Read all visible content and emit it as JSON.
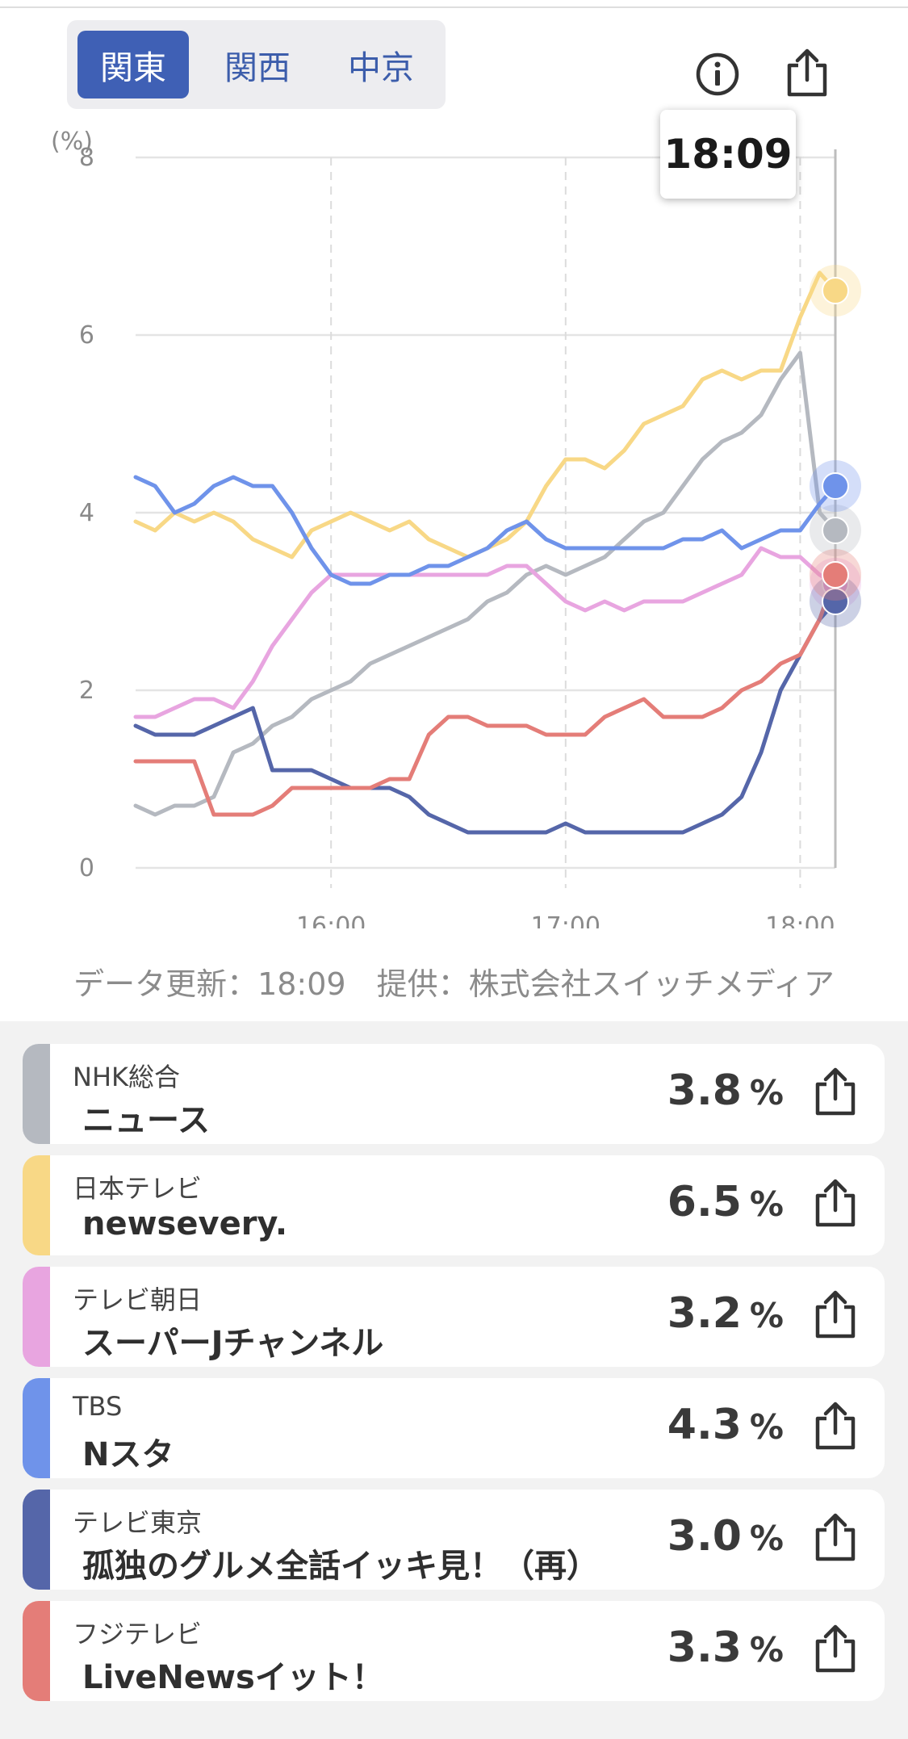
{
  "regions": {
    "tabs": [
      "関東",
      "関西",
      "中京"
    ],
    "active": 0
  },
  "tooltip_time": "18:09",
  "credit": "データ更新：18:09　提供：株式会社スイッチメディア",
  "icons": {
    "info": "info-icon",
    "share": "share-icon"
  },
  "channels": [
    {
      "channel": "NHK総合",
      "program": "ニュース",
      "rating": "3.8",
      "unit": "%",
      "color": "#b5b9c0"
    },
    {
      "channel": "日本テレビ",
      "program": "newsevery.",
      "rating": "6.5",
      "unit": "%",
      "color": "#f8d886"
    },
    {
      "channel": "テレビ朝日",
      "program": "スーパーJチャンネル",
      "rating": "3.2",
      "unit": "%",
      "color": "#e8a5e0"
    },
    {
      "channel": "TBS",
      "program": "Nスタ",
      "rating": "4.3",
      "unit": "%",
      "color": "#6f93ea"
    },
    {
      "channel": "テレビ東京",
      "program": "孤独のグルメ全話イッキ見！（再）",
      "rating": "3.0",
      "unit": "%",
      "color": "#5566a9"
    },
    {
      "channel": "フジテレビ",
      "program": "LiveNewsイット！",
      "rating": "3.3",
      "unit": "%",
      "color": "#e47d78"
    }
  ],
  "chart_data": {
    "type": "line",
    "ylabel": "(%)",
    "ylim": [
      0,
      8
    ],
    "yticks": [
      0,
      2,
      4,
      6,
      8
    ],
    "xlim": [
      "15:10",
      "18:09"
    ],
    "xticks": [
      "16:00",
      "17:00",
      "18:00"
    ],
    "cursor": "18:09",
    "grid": true,
    "x": [
      "15:10",
      "15:15",
      "15:20",
      "15:25",
      "15:30",
      "15:35",
      "15:40",
      "15:45",
      "15:50",
      "15:55",
      "16:00",
      "16:05",
      "16:10",
      "16:15",
      "16:20",
      "16:25",
      "16:30",
      "16:35",
      "16:40",
      "16:45",
      "16:50",
      "16:55",
      "17:00",
      "17:05",
      "17:10",
      "17:15",
      "17:20",
      "17:25",
      "17:30",
      "17:35",
      "17:40",
      "17:45",
      "17:50",
      "17:55",
      "18:00",
      "18:05",
      "18:09"
    ],
    "series": [
      {
        "name": "NHK総合",
        "color": "#b5b9c0",
        "values": [
          0.7,
          0.6,
          0.7,
          0.7,
          0.8,
          1.3,
          1.4,
          1.6,
          1.7,
          1.9,
          2.0,
          2.1,
          2.3,
          2.4,
          2.5,
          2.6,
          2.7,
          2.8,
          3.0,
          3.1,
          3.3,
          3.4,
          3.3,
          3.4,
          3.5,
          3.7,
          3.9,
          4.0,
          4.3,
          4.6,
          4.8,
          4.9,
          5.1,
          5.5,
          5.8,
          4.0,
          3.8
        ]
      },
      {
        "name": "日本テレビ",
        "color": "#f8d886",
        "values": [
          3.9,
          3.8,
          4.0,
          3.9,
          4.0,
          3.9,
          3.7,
          3.6,
          3.5,
          3.8,
          3.9,
          4.0,
          3.9,
          3.8,
          3.9,
          3.7,
          3.6,
          3.5,
          3.6,
          3.7,
          3.9,
          4.3,
          4.6,
          4.6,
          4.5,
          4.7,
          5.0,
          5.1,
          5.2,
          5.5,
          5.6,
          5.5,
          5.6,
          5.6,
          6.2,
          6.7,
          6.5
        ]
      },
      {
        "name": "テレビ朝日",
        "color": "#e8a5e0",
        "values": [
          1.7,
          1.7,
          1.8,
          1.9,
          1.9,
          1.8,
          2.1,
          2.5,
          2.8,
          3.1,
          3.3,
          3.3,
          3.3,
          3.3,
          3.3,
          3.3,
          3.3,
          3.3,
          3.3,
          3.4,
          3.4,
          3.2,
          3.0,
          2.9,
          3.0,
          2.9,
          3.0,
          3.0,
          3.0,
          3.1,
          3.2,
          3.3,
          3.6,
          3.5,
          3.5,
          3.3,
          3.2
        ]
      },
      {
        "name": "TBS",
        "color": "#6f93ea",
        "values": [
          4.4,
          4.3,
          4.0,
          4.1,
          4.3,
          4.4,
          4.3,
          4.3,
          4.0,
          3.6,
          3.3,
          3.2,
          3.2,
          3.3,
          3.3,
          3.4,
          3.4,
          3.5,
          3.6,
          3.8,
          3.9,
          3.7,
          3.6,
          3.6,
          3.6,
          3.6,
          3.6,
          3.6,
          3.7,
          3.7,
          3.8,
          3.6,
          3.7,
          3.8,
          3.8,
          4.1,
          4.3
        ]
      },
      {
        "name": "テレビ東京",
        "color": "#5566a9",
        "values": [
          1.6,
          1.5,
          1.5,
          1.5,
          1.6,
          1.7,
          1.8,
          1.1,
          1.1,
          1.1,
          1.0,
          0.9,
          0.9,
          0.9,
          0.8,
          0.6,
          0.5,
          0.4,
          0.4,
          0.4,
          0.4,
          0.4,
          0.5,
          0.4,
          0.4,
          0.4,
          0.4,
          0.4,
          0.4,
          0.5,
          0.6,
          0.8,
          1.3,
          2.0,
          2.4,
          2.8,
          3.0
        ]
      },
      {
        "name": "フジテレビ",
        "color": "#e47d78",
        "values": [
          1.2,
          1.2,
          1.2,
          1.2,
          0.6,
          0.6,
          0.6,
          0.7,
          0.9,
          0.9,
          0.9,
          0.9,
          0.9,
          1.0,
          1.0,
          1.5,
          1.7,
          1.7,
          1.6,
          1.6,
          1.6,
          1.5,
          1.5,
          1.5,
          1.7,
          1.8,
          1.9,
          1.7,
          1.7,
          1.7,
          1.8,
          2.0,
          2.1,
          2.3,
          2.4,
          2.8,
          3.3
        ]
      }
    ]
  }
}
